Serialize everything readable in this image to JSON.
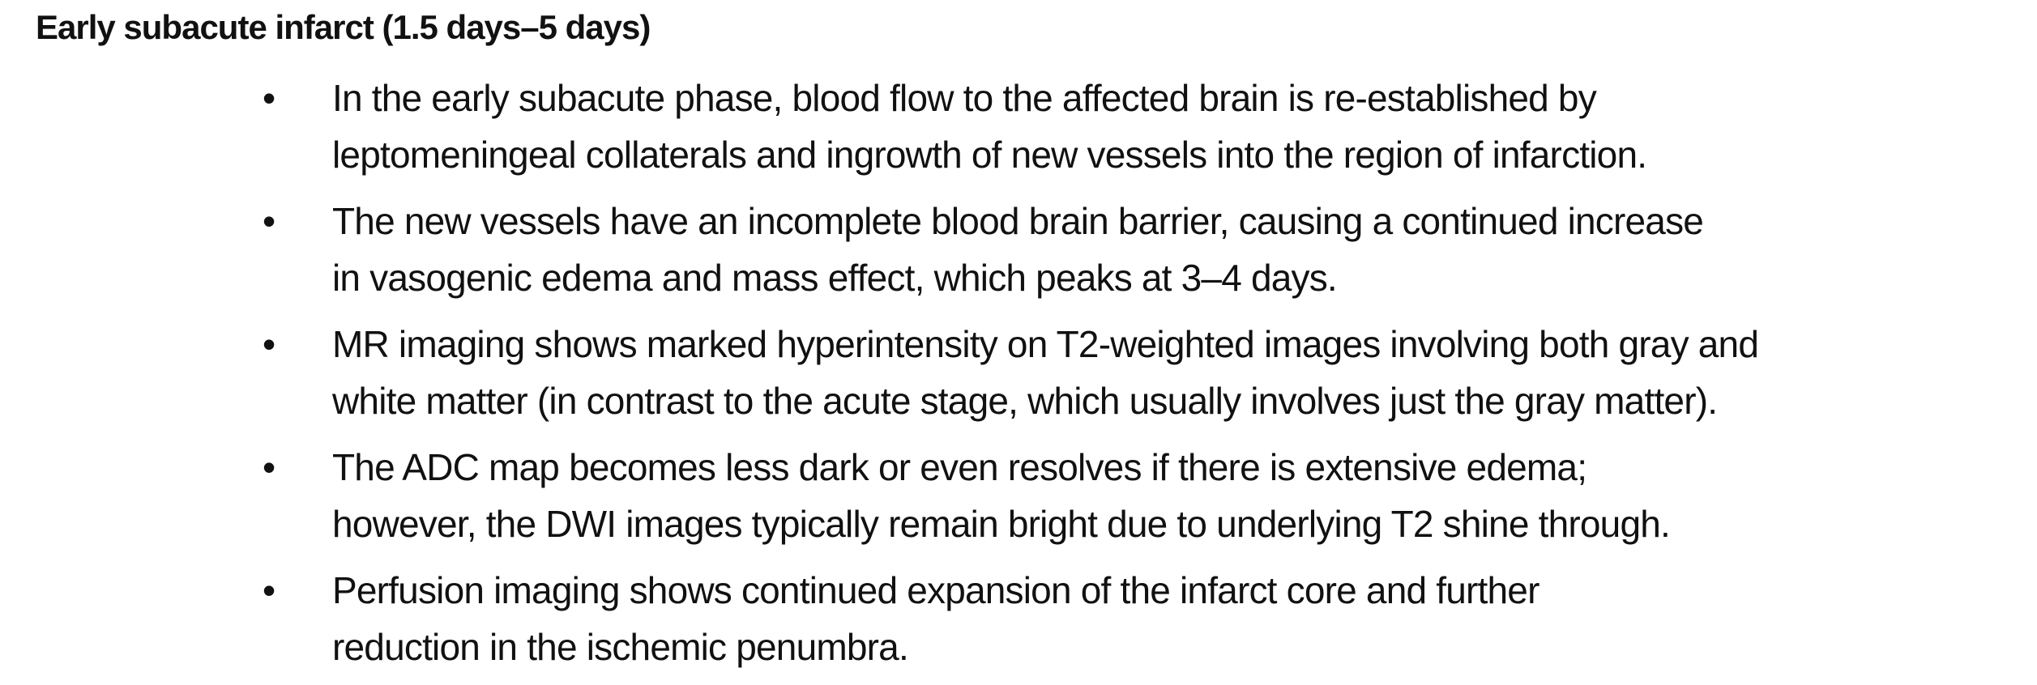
{
  "heading": "Early subacute infarct (1.5 days–5 days)",
  "bullet_glyph": "•",
  "bullets": [
    {
      "lines": [
        "In the early subacute phase, blood flow to the affected brain is re-established by",
        "leptomeningeal collaterals and ingrowth of new vessels into the region of infarction."
      ]
    },
    {
      "lines": [
        "The new vessels have an incomplete blood brain barrier, causing a continued increase",
        "in vasogenic edema and mass effect, which peaks at 3–4 days."
      ]
    },
    {
      "lines": [
        "MR imaging shows marked hyperintensity on T2-weighted images involving both gray and",
        "white matter (in contrast to the acute stage, which usually involves just the gray matter)."
      ]
    },
    {
      "lines": [
        "The ADC map becomes less dark or even resolves if there is extensive edema;",
        "however, the DWI images typically remain bright due to underlying T2 shine through."
      ]
    },
    {
      "lines": [
        "Perfusion imaging shows continued expansion of the infarct core and further",
        "reduction in the ischemic penumbra."
      ]
    }
  ]
}
